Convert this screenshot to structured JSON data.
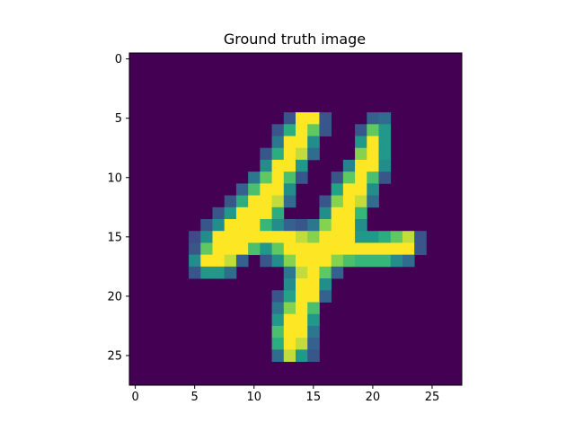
{
  "chart_data": {
    "type": "heatmap",
    "title": "Ground truth image",
    "xlabel": "",
    "ylabel": "",
    "colormap": "viridis",
    "value_range": [
      0,
      1
    ],
    "rows": 28,
    "cols": 28,
    "xlim": [
      -0.5,
      27.5
    ],
    "ylim": [
      27.5,
      -0.5
    ],
    "xticks": [
      0,
      5,
      10,
      15,
      20,
      25
    ],
    "yticks": [
      0,
      5,
      10,
      15,
      20,
      25
    ],
    "pixels": [
      [
        5,
        13,
        0.3
      ],
      [
        5,
        14,
        1.0
      ],
      [
        5,
        15,
        1.0
      ],
      [
        5,
        16,
        0.3
      ],
      [
        5,
        20,
        0.35
      ],
      [
        5,
        21,
        0.4
      ],
      [
        6,
        12,
        0.3
      ],
      [
        6,
        13,
        0.7
      ],
      [
        6,
        14,
        1.0
      ],
      [
        6,
        15,
        0.85
      ],
      [
        6,
        16,
        0.3
      ],
      [
        6,
        19,
        0.3
      ],
      [
        6,
        20,
        0.85
      ],
      [
        6,
        21,
        0.6
      ],
      [
        7,
        12,
        0.45
      ],
      [
        7,
        13,
        1.0
      ],
      [
        7,
        14,
        1.0
      ],
      [
        7,
        15,
        0.55
      ],
      [
        7,
        19,
        0.6
      ],
      [
        7,
        20,
        1.0
      ],
      [
        7,
        21,
        0.6
      ],
      [
        8,
        11,
        0.3
      ],
      [
        8,
        12,
        0.7
      ],
      [
        8,
        13,
        1.0
      ],
      [
        8,
        14,
        0.95
      ],
      [
        8,
        15,
        0.4
      ],
      [
        8,
        19,
        0.9
      ],
      [
        8,
        20,
        1.0
      ],
      [
        8,
        21,
        0.6
      ],
      [
        9,
        11,
        0.55
      ],
      [
        9,
        12,
        1.0
      ],
      [
        9,
        13,
        1.0
      ],
      [
        9,
        14,
        0.6
      ],
      [
        9,
        18,
        0.5
      ],
      [
        9,
        19,
        1.0
      ],
      [
        9,
        20,
        1.0
      ],
      [
        9,
        21,
        0.55
      ],
      [
        10,
        10,
        0.45
      ],
      [
        10,
        11,
        0.85
      ],
      [
        10,
        12,
        1.0
      ],
      [
        10,
        13,
        0.8
      ],
      [
        10,
        14,
        0.3
      ],
      [
        10,
        17,
        0.3
      ],
      [
        10,
        18,
        0.85
      ],
      [
        10,
        19,
        1.0
      ],
      [
        10,
        20,
        0.8
      ],
      [
        10,
        21,
        0.3
      ],
      [
        11,
        9,
        0.35
      ],
      [
        11,
        10,
        0.8
      ],
      [
        11,
        11,
        1.0
      ],
      [
        11,
        12,
        1.0
      ],
      [
        11,
        13,
        0.55
      ],
      [
        11,
        17,
        0.65
      ],
      [
        11,
        18,
        1.0
      ],
      [
        11,
        19,
        1.0
      ],
      [
        11,
        20,
        0.55
      ],
      [
        12,
        8,
        0.3
      ],
      [
        12,
        9,
        0.7
      ],
      [
        12,
        10,
        1.0
      ],
      [
        12,
        11,
        1.0
      ],
      [
        12,
        12,
        0.95
      ],
      [
        12,
        13,
        0.4
      ],
      [
        12,
        16,
        0.3
      ],
      [
        12,
        17,
        0.9
      ],
      [
        12,
        18,
        1.0
      ],
      [
        12,
        19,
        0.95
      ],
      [
        12,
        20,
        0.4
      ],
      [
        13,
        7,
        0.3
      ],
      [
        13,
        8,
        0.6
      ],
      [
        13,
        9,
        1.0
      ],
      [
        13,
        10,
        1.0
      ],
      [
        13,
        11,
        1.0
      ],
      [
        13,
        12,
        0.7
      ],
      [
        13,
        16,
        0.55
      ],
      [
        13,
        17,
        1.0
      ],
      [
        13,
        18,
        1.0
      ],
      [
        13,
        19,
        0.75
      ],
      [
        14,
        6,
        0.3
      ],
      [
        14,
        7,
        0.55
      ],
      [
        14,
        8,
        1.0
      ],
      [
        14,
        9,
        1.0
      ],
      [
        14,
        10,
        1.0
      ],
      [
        14,
        11,
        0.75
      ],
      [
        14,
        12,
        0.55
      ],
      [
        14,
        13,
        0.35
      ],
      [
        14,
        14,
        0.3
      ],
      [
        14,
        15,
        0.45
      ],
      [
        14,
        16,
        0.9
      ],
      [
        14,
        17,
        1.0
      ],
      [
        14,
        18,
        1.0
      ],
      [
        14,
        19,
        0.55
      ],
      [
        15,
        5,
        0.25
      ],
      [
        15,
        6,
        0.55
      ],
      [
        15,
        7,
        1.0
      ],
      [
        15,
        8,
        1.0
      ],
      [
        15,
        9,
        1.0
      ],
      [
        15,
        10,
        1.0
      ],
      [
        15,
        11,
        1.0
      ],
      [
        15,
        12,
        1.0
      ],
      [
        15,
        13,
        1.0
      ],
      [
        15,
        14,
        0.95
      ],
      [
        15,
        15,
        0.9
      ],
      [
        15,
        16,
        1.0
      ],
      [
        15,
        17,
        1.0
      ],
      [
        15,
        18,
        1.0
      ],
      [
        15,
        19,
        0.6
      ],
      [
        15,
        20,
        0.6
      ],
      [
        15,
        21,
        0.7
      ],
      [
        15,
        22,
        0.85
      ],
      [
        15,
        23,
        0.95
      ],
      [
        15,
        24,
        0.3
      ],
      [
        16,
        5,
        0.3
      ],
      [
        16,
        6,
        0.85
      ],
      [
        16,
        7,
        1.0
      ],
      [
        16,
        8,
        1.0
      ],
      [
        16,
        9,
        1.0
      ],
      [
        16,
        10,
        0.8
      ],
      [
        16,
        11,
        0.6
      ],
      [
        16,
        12,
        0.85
      ],
      [
        16,
        13,
        1.0
      ],
      [
        16,
        14,
        1.0
      ],
      [
        16,
        15,
        1.0
      ],
      [
        16,
        16,
        1.0
      ],
      [
        16,
        17,
        1.0
      ],
      [
        16,
        18,
        1.0
      ],
      [
        16,
        19,
        1.0
      ],
      [
        16,
        20,
        1.0
      ],
      [
        16,
        21,
        1.0
      ],
      [
        16,
        22,
        1.0
      ],
      [
        16,
        23,
        1.0
      ],
      [
        16,
        24,
        0.3
      ],
      [
        17,
        5,
        0.55
      ],
      [
        17,
        6,
        1.0
      ],
      [
        17,
        7,
        1.0
      ],
      [
        17,
        8,
        0.95
      ],
      [
        17,
        9,
        0.35
      ],
      [
        17,
        11,
        0.3
      ],
      [
        17,
        12,
        0.55
      ],
      [
        17,
        13,
        0.9
      ],
      [
        17,
        14,
        1.0
      ],
      [
        17,
        15,
        1.0
      ],
      [
        17,
        16,
        1.0
      ],
      [
        17,
        17,
        0.9
      ],
      [
        17,
        18,
        0.8
      ],
      [
        17,
        19,
        0.75
      ],
      [
        17,
        20,
        0.75
      ],
      [
        17,
        21,
        0.75
      ],
      [
        17,
        22,
        0.55
      ],
      [
        17,
        23,
        0.4
      ],
      [
        18,
        5,
        0.3
      ],
      [
        18,
        6,
        0.6
      ],
      [
        18,
        7,
        0.6
      ],
      [
        18,
        8,
        0.4
      ],
      [
        18,
        13,
        0.45
      ],
      [
        18,
        14,
        0.95
      ],
      [
        18,
        15,
        1.0
      ],
      [
        18,
        16,
        0.85
      ],
      [
        18,
        17,
        0.35
      ],
      [
        19,
        13,
        0.55
      ],
      [
        19,
        14,
        1.0
      ],
      [
        19,
        15,
        1.0
      ],
      [
        19,
        16,
        0.55
      ],
      [
        20,
        12,
        0.3
      ],
      [
        20,
        13,
        0.65
      ],
      [
        20,
        14,
        1.0
      ],
      [
        20,
        15,
        1.0
      ],
      [
        20,
        16,
        0.35
      ],
      [
        21,
        12,
        0.45
      ],
      [
        21,
        13,
        0.9
      ],
      [
        21,
        14,
        1.0
      ],
      [
        21,
        15,
        0.8
      ],
      [
        22,
        12,
        0.6
      ],
      [
        22,
        13,
        1.0
      ],
      [
        22,
        14,
        1.0
      ],
      [
        22,
        15,
        0.6
      ],
      [
        23,
        12,
        0.8
      ],
      [
        23,
        13,
        1.0
      ],
      [
        23,
        14,
        1.0
      ],
      [
        23,
        15,
        0.45
      ],
      [
        24,
        12,
        0.7
      ],
      [
        24,
        13,
        1.0
      ],
      [
        24,
        14,
        0.95
      ],
      [
        24,
        15,
        0.35
      ],
      [
        25,
        12,
        0.4
      ],
      [
        25,
        13,
        0.95
      ],
      [
        25,
        14,
        0.6
      ],
      [
        25,
        15,
        0.3
      ]
    ]
  }
}
